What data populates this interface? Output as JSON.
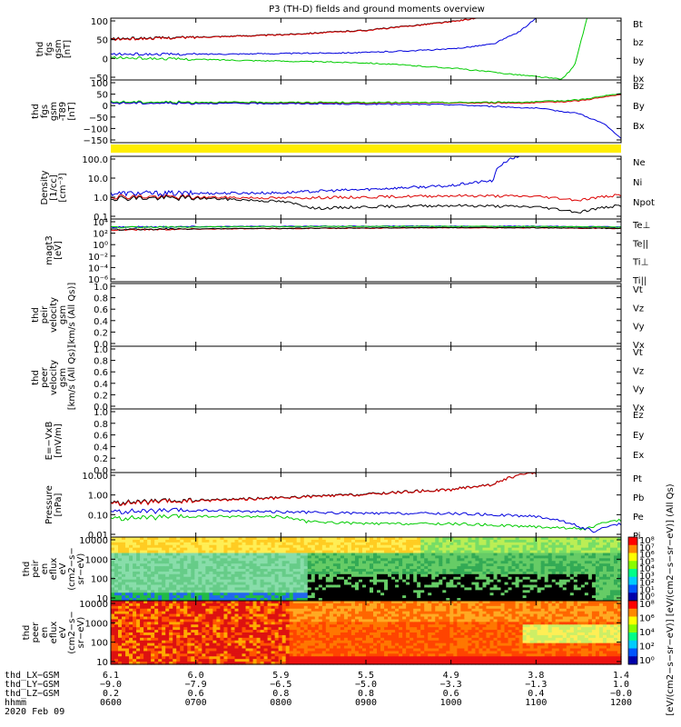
{
  "title": "P3 (TH-D) fields and ground moments overview",
  "colors": {
    "black": "#000000",
    "red": "#dd0000",
    "green": "#00cc00",
    "blue": "#0000dd",
    "yellow": "#ffee00"
  },
  "chart_data": [
    {
      "type": "line",
      "panel": "fgs_gsm",
      "ylabel": [
        "thd",
        "fgs",
        "gsm",
        "[nT]"
      ],
      "yticks": [
        "100",
        "50",
        "0",
        "−50"
      ],
      "ylim": [
        -80,
        100
      ],
      "legend": [
        "Bt",
        "bz",
        "by",
        "bx"
      ],
      "series": [
        {
          "name": "Bt",
          "color": "black",
          "x": [
            6.0,
            7.0,
            8.0,
            9.0,
            10.0,
            10.3
          ],
          "y": [
            40,
            45,
            52,
            65,
            90,
            100
          ]
        },
        {
          "name": "bz",
          "color": "red",
          "x": [
            6.0,
            7.0,
            8.0,
            9.0,
            10.0,
            10.3
          ],
          "y": [
            38,
            44,
            51,
            64,
            89,
            100
          ]
        },
        {
          "name": "by",
          "color": "green",
          "x": [
            6.0,
            7.0,
            8.0,
            9.0,
            10.0,
            11.0,
            11.3,
            11.45,
            11.6
          ],
          "y": [
            -15,
            -20,
            -25,
            -30,
            -45,
            -70,
            -78,
            -40,
            100
          ]
        },
        {
          "name": "bx",
          "color": "blue",
          "x": [
            6.0,
            7.0,
            8.0,
            9.0,
            10.0,
            10.5,
            10.8,
            11.0
          ],
          "y": [
            -5,
            -5,
            -3,
            0,
            10,
            25,
            60,
            100
          ]
        }
      ]
    },
    {
      "type": "line",
      "panel": "fgs_gsm_dev",
      "ylabel": [
        "thd",
        "fgs",
        "gsm",
        "-T89",
        "[nT]"
      ],
      "yticks": [
        "100",
        "50",
        "0",
        "−50",
        "−100",
        "−150"
      ],
      "ylim": [
        -190,
        110
      ],
      "legend": [
        "Bz",
        "By",
        "Bx"
      ],
      "series": [
        {
          "name": "Bz",
          "color": "red",
          "x": [
            6.0,
            8.0,
            10.0,
            11.0,
            11.5,
            12.0
          ],
          "y": [
            0,
            0,
            0,
            0,
            10,
            40
          ]
        },
        {
          "name": "By",
          "color": "green",
          "x": [
            6.0,
            8.0,
            10.0,
            11.0,
            11.5,
            12.0
          ],
          "y": [
            5,
            3,
            2,
            5,
            15,
            45
          ]
        },
        {
          "name": "Bx",
          "color": "blue",
          "x": [
            6.0,
            8.0,
            10.0,
            11.0,
            11.5,
            11.8,
            12.0
          ],
          "y": [
            0,
            -3,
            -8,
            -25,
            -50,
            -100,
            -170
          ]
        }
      ]
    },
    {
      "type": "line",
      "panel": "density",
      "scale": "log",
      "ylabel": [
        "Density",
        "[1/cc]",
        "[cm⁻³]"
      ],
      "yticks": [
        "100.0",
        "10.0",
        "1.0",
        "0.1"
      ],
      "ylim": [
        0.05,
        200
      ],
      "legend": [
        "Ne",
        "Ni",
        "Npot"
      ],
      "series": [
        {
          "name": "Ne",
          "color": "red",
          "x": [
            6.0,
            7.0,
            8.0,
            9.0,
            10.0,
            11.0,
            11.5,
            12.0
          ],
          "y": [
            1.0,
            0.9,
            0.8,
            0.9,
            1.1,
            1.0,
            0.6,
            1.2
          ]
        },
        {
          "name": "Ni",
          "color": "black",
          "x": [
            6.0,
            7.0,
            8.0,
            8.4,
            9.0,
            10.0,
            11.0,
            11.5,
            12.0
          ],
          "y": [
            0.8,
            0.8,
            0.5,
            0.2,
            0.25,
            0.3,
            0.25,
            0.12,
            0.3
          ]
        },
        {
          "name": "Npot",
          "color": "blue",
          "x": [
            6.0,
            7.0,
            8.0,
            9.0,
            10.0,
            10.5,
            10.8
          ],
          "y": [
            1.5,
            1.5,
            1.6,
            2.5,
            4.0,
            8.0,
            200
          ]
        }
      ]
    },
    {
      "type": "line",
      "panel": "temperature",
      "scale": "log",
      "ylabel": [
        "magt3",
        "[eV]"
      ],
      "yticks": [
        "10⁴",
        "10²",
        "10⁰",
        "10⁻²",
        "10⁻⁴",
        "10⁻⁶"
      ],
      "ylim": [
        1e-07,
        100000.0
      ],
      "legend": [
        "Te⊥",
        "Te||",
        "Ti⊥",
        "Ti||"
      ],
      "series": [
        {
          "name": "Te⊥",
          "color": "red",
          "x": [
            6.0,
            7.0,
            8.0,
            9.0,
            10.0,
            11.0,
            12.0
          ],
          "y": [
            800,
            1200,
            1500,
            1800,
            2200,
            2000,
            1500
          ]
        },
        {
          "name": "Te||",
          "color": "black",
          "x": [
            6.0,
            7.0,
            8.0,
            9.0,
            10.0,
            11.0,
            12.0
          ],
          "y": [
            900,
            1300,
            1600,
            1900,
            2400,
            2100,
            1600
          ]
        },
        {
          "name": "Ti⊥",
          "color": "blue",
          "x": [
            6.0,
            7.0,
            8.0,
            9.0,
            10.0,
            11.0,
            12.0
          ],
          "y": [
            3000,
            3500,
            4000,
            4200,
            4500,
            4000,
            3000
          ]
        },
        {
          "name": "Ti||",
          "color": "green",
          "x": [
            6.0,
            7.0,
            8.0,
            9.0,
            10.0,
            11.0,
            12.0
          ],
          "y": [
            2500,
            3000,
            3500,
            3800,
            4000,
            3600,
            2800
          ]
        }
      ]
    },
    {
      "type": "line",
      "panel": "peir_velocity",
      "ylabel": [
        "thd",
        "peir",
        "velocity",
        "gsm",
        "[km/s (All Qs)]"
      ],
      "yticks": [
        "1.0",
        "0.8",
        "0.6",
        "0.4",
        "0.2",
        "0.0"
      ],
      "ylim": [
        0,
        1
      ],
      "legend": [
        "Vt",
        "Vz",
        "Vy",
        "Vx"
      ],
      "series": []
    },
    {
      "type": "line",
      "panel": "peer_velocity",
      "ylabel": [
        "thd",
        "peer",
        "velocity",
        "gsm",
        "[km/s (All Qs)]"
      ],
      "yticks": [
        "1.0",
        "0.8",
        "0.6",
        "0.4",
        "0.2",
        "0.0"
      ],
      "ylim": [
        0,
        1
      ],
      "legend": [
        "Vt",
        "Vz",
        "Vy",
        "Vx"
      ],
      "series": []
    },
    {
      "type": "line",
      "panel": "efield",
      "ylabel": [
        "E=−VxB",
        "[mV/m]"
      ],
      "yticks": [
        "1.0",
        "0.8",
        "0.6",
        "0.4",
        "0.2",
        "0.0"
      ],
      "ylim": [
        0,
        1
      ],
      "legend": [
        "Ez",
        "Ey",
        "Ex"
      ],
      "series": []
    },
    {
      "type": "line",
      "panel": "pressure",
      "scale": "log",
      "ylabel": [
        "Pressure",
        "[nPa]"
      ],
      "yticks": [
        "10.00",
        "1.00",
        "0.10",
        "0.01"
      ],
      "ylim": [
        0.005,
        30
      ],
      "legend": [
        "Pt",
        "Pb",
        "Pe",
        "Pi"
      ],
      "series": [
        {
          "name": "Pt",
          "color": "black",
          "x": [
            6.0,
            7.0,
            8.0,
            9.0,
            10.0,
            10.5,
            11.0
          ],
          "y": [
            0.5,
            0.7,
            1.0,
            1.6,
            3.0,
            6.0,
            30
          ]
        },
        {
          "name": "Pb",
          "color": "red",
          "x": [
            6.0,
            7.0,
            8.0,
            9.0,
            10.0,
            10.5,
            11.0
          ],
          "y": [
            0.45,
            0.65,
            0.95,
            1.5,
            2.9,
            5.8,
            30
          ]
        },
        {
          "name": "Pe",
          "color": "green",
          "x": [
            6.0,
            6.5,
            7.0,
            8.0,
            8.3,
            9.0,
            10.0,
            11.0,
            11.6,
            12.0
          ],
          "y": [
            0.06,
            0.07,
            0.08,
            0.08,
            0.04,
            0.03,
            0.03,
            0.02,
            0.015,
            0.05
          ]
        },
        {
          "name": "Pi",
          "color": "blue",
          "x": [
            6.0,
            7.0,
            8.0,
            9.0,
            10.0,
            11.0,
            11.5,
            11.7,
            12.0
          ],
          "y": [
            0.15,
            0.18,
            0.15,
            0.12,
            0.12,
            0.08,
            0.02,
            0.01,
            0.03
          ]
        }
      ]
    },
    {
      "type": "heatmap",
      "panel": "peir_eflux",
      "ylabel": [
        "thd",
        "peir",
        "en",
        "eflux",
        "eV",
        "(cm2−s−",
        "sr−eV)"
      ],
      "yticks": [
        "10000",
        "1000",
        "100",
        "10"
      ],
      "ylim": [
        5,
        20000
      ],
      "colorbar_ticks": [
        "10⁸",
        "10⁷",
        "10⁶",
        "10⁵",
        "10⁴",
        "10³",
        "10²",
        "10¹",
        "10⁰"
      ]
    },
    {
      "type": "heatmap",
      "panel": "peer_eflux",
      "ylabel": [
        "thd",
        "peer",
        "en",
        "eflux",
        "eV",
        "(cm2−s−",
        "sr−eV)"
      ],
      "yticks": [
        "10000",
        "1000",
        "100",
        "10"
      ],
      "ylim": [
        5,
        20000
      ],
      "colorbar_ticks": [
        "10⁸",
        "10⁶",
        "10⁴",
        "10²",
        "10⁰"
      ]
    }
  ],
  "colorbar_label": "[eV/(cm2−s−sr−eV)] [eV/(cm2−s−sr−eV)] (All Qs)",
  "axis": {
    "rows": [
      {
        "label": "thd_LX−GSM",
        "values": [
          "6.1",
          "6.0",
          "5.9",
          "5.5",
          "4.9",
          "3.8",
          "1.4"
        ]
      },
      {
        "label": "thd_LY−GSM",
        "values": [
          "−9.0",
          "−7.9",
          "−6.5",
          "−5.0",
          "−3.3",
          "−1.3",
          "1.0"
        ]
      },
      {
        "label": "thd_LZ−GSM",
        "values": [
          "0.2",
          "0.6",
          "0.8",
          "0.8",
          "0.6",
          "0.4",
          "−0.0"
        ]
      },
      {
        "label": "hhmm",
        "values": [
          "0600",
          "0700",
          "0800",
          "0900",
          "1000",
          "1100",
          "1200"
        ]
      }
    ],
    "date": "2020 Feb 09"
  }
}
